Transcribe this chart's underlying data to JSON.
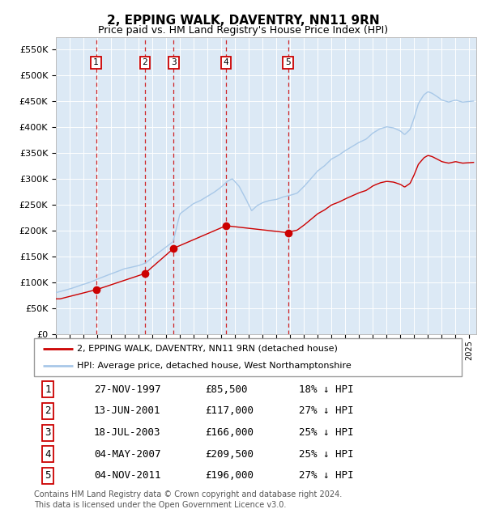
{
  "title": "2, EPPING WALK, DAVENTRY, NN11 9RN",
  "subtitle": "Price paid vs. HM Land Registry's House Price Index (HPI)",
  "title_fontsize": 11,
  "subtitle_fontsize": 9,
  "background_color": "#dce9f5",
  "plot_bg_color": "#dce9f5",
  "ylabel_ticks": [
    "£0",
    "£50K",
    "£100K",
    "£150K",
    "£200K",
    "£250K",
    "£300K",
    "£350K",
    "£400K",
    "£450K",
    "£500K",
    "£550K"
  ],
  "ytick_values": [
    0,
    50000,
    100000,
    150000,
    200000,
    250000,
    300000,
    350000,
    400000,
    450000,
    500000,
    550000
  ],
  "ylim": [
    0,
    575000
  ],
  "hpi_color": "#a8c8e8",
  "price_color": "#cc0000",
  "vline_color": "#cc0000",
  "sale_dates_x": [
    1997.91,
    2001.45,
    2003.55,
    2007.34,
    2011.84
  ],
  "sale_prices_y": [
    85500,
    117000,
    166000,
    209500,
    196000
  ],
  "sale_labels": [
    "1",
    "2",
    "3",
    "4",
    "5"
  ],
  "legend_label_red": "2, EPPING WALK, DAVENTRY, NN11 9RN (detached house)",
  "legend_label_blue": "HPI: Average price, detached house, West Northamptonshire",
  "table_rows": [
    [
      "1",
      "27-NOV-1997",
      "£85,500",
      "18% ↓ HPI"
    ],
    [
      "2",
      "13-JUN-2001",
      "£117,000",
      "27% ↓ HPI"
    ],
    [
      "3",
      "18-JUL-2003",
      "£166,000",
      "25% ↓ HPI"
    ],
    [
      "4",
      "04-MAY-2007",
      "£209,500",
      "25% ↓ HPI"
    ],
    [
      "5",
      "04-NOV-2011",
      "£196,000",
      "27% ↓ HPI"
    ]
  ],
  "footnote": "Contains HM Land Registry data © Crown copyright and database right 2024.\nThis data is licensed under the Open Government Licence v3.0.",
  "xlim_start": 1995.0,
  "xlim_end": 2025.5,
  "xtick_years": [
    1995,
    1996,
    1997,
    1998,
    1999,
    2000,
    2001,
    2002,
    2003,
    2004,
    2005,
    2006,
    2007,
    2008,
    2009,
    2010,
    2011,
    2012,
    2013,
    2014,
    2015,
    2016,
    2017,
    2018,
    2019,
    2020,
    2021,
    2022,
    2023,
    2024,
    2025
  ],
  "hpi_points_x": [
    1995.0,
    1996.0,
    1997.0,
    1997.5,
    1998.0,
    1999.0,
    2000.0,
    2001.0,
    2001.5,
    2002.0,
    2003.0,
    2003.5,
    2004.0,
    2004.5,
    2005.0,
    2005.5,
    2006.0,
    2006.5,
    2007.0,
    2007.5,
    2007.8,
    2008.3,
    2008.8,
    2009.2,
    2009.6,
    2010.0,
    2010.5,
    2011.0,
    2011.5,
    2012.0,
    2012.5,
    2013.0,
    2013.5,
    2014.0,
    2014.5,
    2015.0,
    2015.5,
    2016.0,
    2016.5,
    2017.0,
    2017.5,
    2018.0,
    2018.5,
    2019.0,
    2019.5,
    2020.0,
    2020.3,
    2020.7,
    2021.0,
    2021.3,
    2021.7,
    2022.0,
    2022.3,
    2022.7,
    2023.0,
    2023.5,
    2024.0,
    2024.5,
    2025.3
  ],
  "hpi_points_y": [
    80000,
    87000,
    96000,
    100000,
    106000,
    116000,
    126000,
    132000,
    137000,
    148000,
    168000,
    178000,
    232000,
    242000,
    252000,
    258000,
    266000,
    274000,
    284000,
    296000,
    300000,
    285000,
    260000,
    238000,
    248000,
    254000,
    258000,
    260000,
    265000,
    268000,
    272000,
    285000,
    300000,
    315000,
    325000,
    338000,
    345000,
    354000,
    362000,
    370000,
    376000,
    388000,
    396000,
    400000,
    398000,
    392000,
    385000,
    395000,
    418000,
    445000,
    462000,
    468000,
    465000,
    458000,
    452000,
    448000,
    452000,
    448000,
    450000
  ],
  "red_points_x": [
    1995.3,
    1997.91,
    2001.45,
    2003.55,
    2007.34,
    2011.84
  ],
  "red_points_y": [
    68000,
    85500,
    117000,
    166000,
    209500,
    196000
  ],
  "hpi_at_last_sale": 265000,
  "last_sale_price": 196000,
  "last_sale_year": 2011.84
}
